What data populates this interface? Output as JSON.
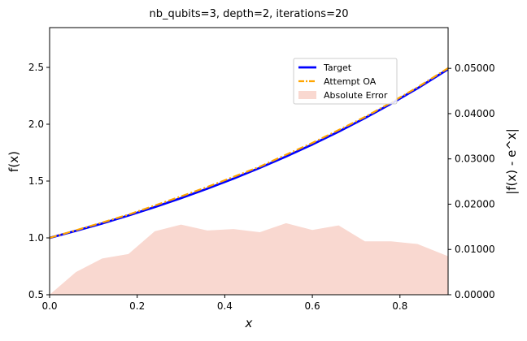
{
  "chart_data": {
    "type": "line",
    "title": "nb_qubits=3, depth=2, iterations=20",
    "xlabel": "x",
    "ylabel_left": "f(x)",
    "ylabel_right": "|f(x) - e^x|",
    "xlim": [
      0.0,
      0.91
    ],
    "ylim_left": [
      0.5,
      2.85
    ],
    "ylim_right": [
      0.0,
      0.059
    ],
    "xticks": [
      0.0,
      0.2,
      0.4,
      0.6,
      0.8
    ],
    "xtick_labels": [
      "0.0",
      "0.2",
      "0.4",
      "0.6",
      "0.8"
    ],
    "yticks_left": [
      0.5,
      1.0,
      1.5,
      2.0,
      2.5
    ],
    "ytick_labels_left": [
      "0.5",
      "1.0",
      "1.5",
      "2.0",
      "2.5"
    ],
    "yticks_right": [
      0.0,
      0.01,
      0.02,
      0.03,
      0.04,
      0.05
    ],
    "ytick_labels_right": [
      "0.00000",
      "0.01000",
      "0.02000",
      "0.03000",
      "0.04000",
      "0.05000"
    ],
    "grid": false,
    "legend_position": "upper right",
    "x": [
      0.0,
      0.06,
      0.12,
      0.18,
      0.24,
      0.3,
      0.36,
      0.42,
      0.48,
      0.54,
      0.6,
      0.66,
      0.72,
      0.78,
      0.84,
      0.91
    ],
    "series": [
      {
        "name": "Target",
        "axis": "left",
        "style": "solid",
        "color": "#0000ff",
        "values": [
          1.0,
          1.062,
          1.127,
          1.197,
          1.271,
          1.35,
          1.433,
          1.522,
          1.616,
          1.716,
          1.822,
          1.935,
          2.054,
          2.181,
          2.316,
          2.484
        ]
      },
      {
        "name": "Attempt OA",
        "axis": "left",
        "style": "dashdot",
        "color": "#ffa500",
        "values": [
          1.0,
          1.067,
          1.135,
          1.205,
          1.285,
          1.365,
          1.448,
          1.537,
          1.627,
          1.732,
          1.836,
          1.949,
          2.064,
          2.191,
          2.325,
          2.493
        ]
      },
      {
        "name": "Absolute Error",
        "axis": "right",
        "style": "area",
        "color": "#f9d8d0",
        "values": [
          0.0,
          0.005,
          0.008,
          0.009,
          0.014,
          0.0155,
          0.0142,
          0.0145,
          0.0138,
          0.0158,
          0.0143,
          0.0153,
          0.0118,
          0.0118,
          0.0112,
          0.0085
        ]
      }
    ]
  }
}
